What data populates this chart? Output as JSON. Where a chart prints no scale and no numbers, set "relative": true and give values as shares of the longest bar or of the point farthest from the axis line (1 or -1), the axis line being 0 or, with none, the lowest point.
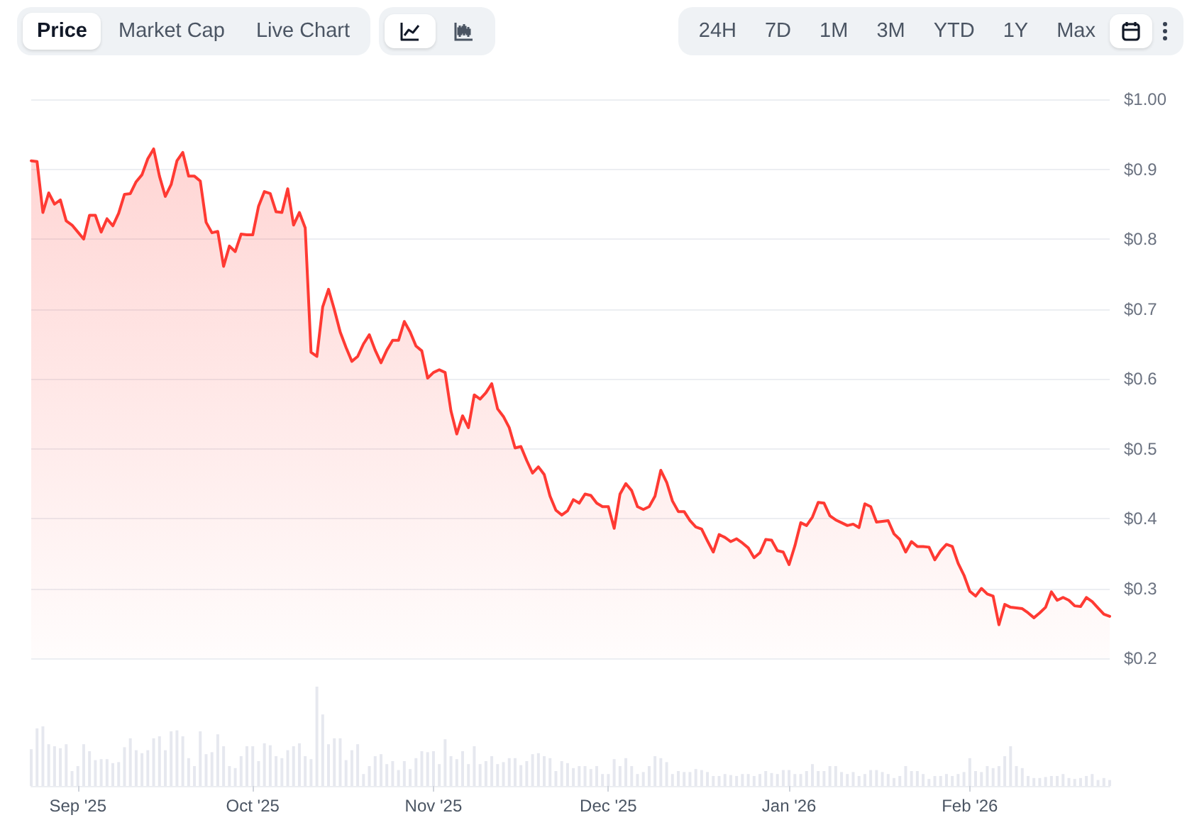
{
  "chart_data": [
    {
      "type": "area",
      "tick_labels": "y",
      "grid": "y",
      "marker": "none",
      "line_style": "solid",
      "annotations": [
        "Price",
        "Market Cap",
        "Live Chart",
        "24H",
        "7D",
        "1M",
        "3M",
        "YTD",
        "1Y",
        "Max"
      ],
      "xlim": [
        "2025-08-24",
        "2026-02-25"
      ],
      "ylim": [
        0.2,
        1.0
      ],
      "yticks": [
        {
          "value": 0.2,
          "label": "$0.2"
        },
        {
          "value": 0.3,
          "label": "$0.3"
        },
        {
          "value": 0.4,
          "label": "$0.4"
        },
        {
          "value": 0.5,
          "label": "$0.5"
        },
        {
          "value": 0.6,
          "label": "$0.6"
        },
        {
          "value": 0.7,
          "label": "$0.7"
        },
        {
          "value": 0.8,
          "label": "$0.8"
        },
        {
          "value": 0.9,
          "label": "$0.9"
        },
        {
          "value": 1.0,
          "label": "$1.00"
        }
      ],
      "x": [
        "2025-08-24",
        "2025-08-25",
        "2025-08-26",
        "2025-08-27",
        "2025-08-28",
        "2025-08-29",
        "2025-08-30",
        "2025-08-31",
        "2025-09-01",
        "2025-09-02",
        "2025-09-03",
        "2025-09-04",
        "2025-09-05",
        "2025-09-06",
        "2025-09-07",
        "2025-09-08",
        "2025-09-09",
        "2025-09-10",
        "2025-09-11",
        "2025-09-12",
        "2025-09-13",
        "2025-09-14",
        "2025-09-15",
        "2025-09-16",
        "2025-09-17",
        "2025-09-18",
        "2025-09-19",
        "2025-09-20",
        "2025-09-21",
        "2025-09-22",
        "2025-09-23",
        "2025-09-24",
        "2025-09-25",
        "2025-09-26",
        "2025-09-27",
        "2025-09-28",
        "2025-09-29",
        "2025-09-30",
        "2025-10-01",
        "2025-10-02",
        "2025-10-03",
        "2025-10-04",
        "2025-10-05",
        "2025-10-06",
        "2025-10-07",
        "2025-10-08",
        "2025-10-09",
        "2025-10-10",
        "2025-10-11",
        "2025-10-12",
        "2025-10-13",
        "2025-10-14",
        "2025-10-15",
        "2025-10-16",
        "2025-10-17",
        "2025-10-18",
        "2025-10-19",
        "2025-10-20",
        "2025-10-21",
        "2025-10-22",
        "2025-10-23",
        "2025-10-24",
        "2025-10-25",
        "2025-10-26",
        "2025-10-27",
        "2025-10-28",
        "2025-10-29",
        "2025-10-30",
        "2025-10-31",
        "2025-11-01",
        "2025-11-02",
        "2025-11-03",
        "2025-11-04",
        "2025-11-05",
        "2025-11-06",
        "2025-11-07",
        "2025-11-08",
        "2025-11-09",
        "2025-11-10",
        "2025-11-11",
        "2025-11-12",
        "2025-11-13",
        "2025-11-14",
        "2025-11-15",
        "2025-11-16",
        "2025-11-17",
        "2025-11-18",
        "2025-11-19",
        "2025-11-20",
        "2025-11-21",
        "2025-11-22",
        "2025-11-23",
        "2025-11-24",
        "2025-11-25",
        "2025-11-26",
        "2025-11-27",
        "2025-11-28",
        "2025-11-29",
        "2025-11-30",
        "2025-12-01",
        "2025-12-02",
        "2025-12-03",
        "2025-12-04",
        "2025-12-05",
        "2025-12-06",
        "2025-12-07",
        "2025-12-08",
        "2025-12-09",
        "2025-12-10",
        "2025-12-11",
        "2025-12-12",
        "2025-12-13",
        "2025-12-14",
        "2025-12-15",
        "2025-12-16",
        "2025-12-17",
        "2025-12-18",
        "2025-12-19",
        "2025-12-20",
        "2025-12-21",
        "2025-12-22",
        "2025-12-23",
        "2025-12-24",
        "2025-12-25",
        "2025-12-26",
        "2025-12-27",
        "2025-12-28",
        "2025-12-29",
        "2025-12-30",
        "2025-12-31",
        "2026-01-01",
        "2026-01-02",
        "2026-01-03",
        "2026-01-04",
        "2026-01-05",
        "2026-01-06",
        "2026-01-07",
        "2026-01-08",
        "2026-01-09",
        "2026-01-10",
        "2026-01-11",
        "2026-01-12",
        "2026-01-13",
        "2026-01-14",
        "2026-01-15",
        "2026-01-16",
        "2026-01-17",
        "2026-01-18",
        "2026-01-19",
        "2026-01-20",
        "2026-01-21",
        "2026-01-22",
        "2026-01-23",
        "2026-01-24",
        "2026-01-25",
        "2026-01-26",
        "2026-01-27",
        "2026-01-28",
        "2026-01-29",
        "2026-01-30",
        "2026-01-31",
        "2026-02-01",
        "2026-02-02",
        "2026-02-03",
        "2026-02-04",
        "2026-02-05",
        "2026-02-06",
        "2026-02-07",
        "2026-02-08",
        "2026-02-09",
        "2026-02-10",
        "2026-02-11",
        "2026-02-12",
        "2026-02-13",
        "2026-02-14",
        "2026-02-15",
        "2026-02-16",
        "2026-02-17",
        "2026-02-18",
        "2026-02-19",
        "2026-02-20",
        "2026-02-21",
        "2026-02-22",
        "2026-02-23",
        "2026-02-24",
        "2026-02-25"
      ],
      "series": [
        {
          "color": "#ff3a33",
          "values": [
            0.912,
            0.911,
            0.838,
            0.866,
            0.85,
            0.856,
            0.826,
            0.82,
            0.81,
            0.8,
            0.834,
            0.834,
            0.81,
            0.829,
            0.819,
            0.837,
            0.864,
            0.865,
            0.882,
            0.892,
            0.915,
            0.929,
            0.89,
            0.861,
            0.878,
            0.912,
            0.924,
            0.89,
            0.89,
            0.883,
            0.824,
            0.809,
            0.811,
            0.761,
            0.79,
            0.782,
            0.807,
            0.806,
            0.806,
            0.847,
            0.868,
            0.865,
            0.839,
            0.838,
            0.872,
            0.82,
            0.838,
            0.816,
            0.638,
            0.632,
            0.703,
            0.728,
            0.699,
            0.667,
            0.645,
            0.625,
            0.632,
            0.65,
            0.663,
            0.641,
            0.623,
            0.641,
            0.655,
            0.655,
            0.682,
            0.667,
            0.647,
            0.64,
            0.601,
            0.609,
            0.613,
            0.609,
            0.554,
            0.521,
            0.547,
            0.53,
            0.577,
            0.571,
            0.58,
            0.593,
            0.557,
            0.546,
            0.53,
            0.501,
            0.503,
            0.483,
            0.465,
            0.474,
            0.463,
            0.432,
            0.412,
            0.405,
            0.411,
            0.427,
            0.422,
            0.435,
            0.433,
            0.422,
            0.417,
            0.417,
            0.386,
            0.435,
            0.45,
            0.44,
            0.417,
            0.413,
            0.417,
            0.432,
            0.469,
            0.452,
            0.425,
            0.41,
            0.41,
            0.397,
            0.388,
            0.385,
            0.368,
            0.352,
            0.377,
            0.373,
            0.367,
            0.371,
            0.365,
            0.358,
            0.344,
            0.351,
            0.37,
            0.369,
            0.354,
            0.352,
            0.334,
            0.361,
            0.394,
            0.39,
            0.402,
            0.423,
            0.422,
            0.404,
            0.398,
            0.394,
            0.39,
            0.392,
            0.387,
            0.421,
            0.417,
            0.395,
            0.396,
            0.397,
            0.378,
            0.37,
            0.352,
            0.367,
            0.36,
            0.36,
            0.359,
            0.341,
            0.354,
            0.363,
            0.36,
            0.336,
            0.319,
            0.296,
            0.289,
            0.3,
            0.292,
            0.289,
            0.248,
            0.277,
            0.273,
            0.272,
            0.271,
            0.265,
            0.258,
            0.265,
            0.273,
            0.295,
            0.283,
            0.287,
            0.283,
            0.275,
            0.274,
            0.287,
            0.281,
            0.272,
            0.263,
            0.26
          ]
        }
      ]
    },
    {
      "type": "bar",
      "relative": true,
      "tick_labels": "x",
      "grid": false,
      "xlim": [
        "2025-08-24",
        "2026-02-25"
      ],
      "xticks": [
        {
          "value": "2025-09-01",
          "label": "Sep '25"
        },
        {
          "value": "2025-10-01",
          "label": "Oct '25"
        },
        {
          "value": "2025-11-01",
          "label": "Nov '25"
        },
        {
          "value": "2025-12-01",
          "label": "Dec '25"
        },
        {
          "value": "2026-01-01",
          "label": "Jan '26"
        },
        {
          "value": "2026-02-01",
          "label": "Feb '26"
        }
      ],
      "x": [
        "2025-08-24",
        "2025-08-25",
        "2025-08-26",
        "2025-08-27",
        "2025-08-28",
        "2025-08-29",
        "2025-08-30",
        "2025-08-31",
        "2025-09-01",
        "2025-09-02",
        "2025-09-03",
        "2025-09-04",
        "2025-09-05",
        "2025-09-06",
        "2025-09-07",
        "2025-09-08",
        "2025-09-09",
        "2025-09-10",
        "2025-09-11",
        "2025-09-12",
        "2025-09-13",
        "2025-09-14",
        "2025-09-15",
        "2025-09-16",
        "2025-09-17",
        "2025-09-18",
        "2025-09-19",
        "2025-09-20",
        "2025-09-21",
        "2025-09-22",
        "2025-09-23",
        "2025-09-24",
        "2025-09-25",
        "2025-09-26",
        "2025-09-27",
        "2025-09-28",
        "2025-09-29",
        "2025-09-30",
        "2025-10-01",
        "2025-10-02",
        "2025-10-03",
        "2025-10-04",
        "2025-10-05",
        "2025-10-06",
        "2025-10-07",
        "2025-10-08",
        "2025-10-09",
        "2025-10-10",
        "2025-10-11",
        "2025-10-12",
        "2025-10-13",
        "2025-10-14",
        "2025-10-15",
        "2025-10-16",
        "2025-10-17",
        "2025-10-18",
        "2025-10-19",
        "2025-10-20",
        "2025-10-21",
        "2025-10-22",
        "2025-10-23",
        "2025-10-24",
        "2025-10-25",
        "2025-10-26",
        "2025-10-27",
        "2025-10-28",
        "2025-10-29",
        "2025-10-30",
        "2025-10-31",
        "2025-11-01",
        "2025-11-02",
        "2025-11-03",
        "2025-11-04",
        "2025-11-05",
        "2025-11-06",
        "2025-11-07",
        "2025-11-08",
        "2025-11-09",
        "2025-11-10",
        "2025-11-11",
        "2025-11-12",
        "2025-11-13",
        "2025-11-14",
        "2025-11-15",
        "2025-11-16",
        "2025-11-17",
        "2025-11-18",
        "2025-11-19",
        "2025-11-20",
        "2025-11-21",
        "2025-11-22",
        "2025-11-23",
        "2025-11-24",
        "2025-11-25",
        "2025-11-26",
        "2025-11-27",
        "2025-11-28",
        "2025-11-29",
        "2025-11-30",
        "2025-12-01",
        "2025-12-02",
        "2025-12-03",
        "2025-12-04",
        "2025-12-05",
        "2025-12-06",
        "2025-12-07",
        "2025-12-08",
        "2025-12-09",
        "2025-12-10",
        "2025-12-11",
        "2025-12-12",
        "2025-12-13",
        "2025-12-14",
        "2025-12-15",
        "2025-12-16",
        "2025-12-17",
        "2025-12-18",
        "2025-12-19",
        "2025-12-20",
        "2025-12-21",
        "2025-12-22",
        "2025-12-23",
        "2025-12-24",
        "2025-12-25",
        "2025-12-26",
        "2025-12-27",
        "2025-12-28",
        "2025-12-29",
        "2025-12-30",
        "2025-12-31",
        "2026-01-01",
        "2026-01-02",
        "2026-01-03",
        "2026-01-04",
        "2026-01-05",
        "2026-01-06",
        "2026-01-07",
        "2026-01-08",
        "2026-01-09",
        "2026-01-10",
        "2026-01-11",
        "2026-01-12",
        "2026-01-13",
        "2026-01-14",
        "2026-01-15",
        "2026-01-16",
        "2026-01-17",
        "2026-01-18",
        "2026-01-19",
        "2026-01-20",
        "2026-01-21",
        "2026-01-22",
        "2026-01-23",
        "2026-01-24",
        "2026-01-25",
        "2026-01-26",
        "2026-01-27",
        "2026-01-28",
        "2026-01-29",
        "2026-01-30",
        "2026-01-31",
        "2026-02-01",
        "2026-02-02",
        "2026-02-03",
        "2026-02-04",
        "2026-02-05",
        "2026-02-06",
        "2026-02-07",
        "2026-02-08",
        "2026-02-09",
        "2026-02-10",
        "2026-02-11",
        "2026-02-12",
        "2026-02-13",
        "2026-02-14",
        "2026-02-15",
        "2026-02-16",
        "2026-02-17",
        "2026-02-18",
        "2026-02-19",
        "2026-02-20",
        "2026-02-21",
        "2026-02-22",
        "2026-02-23",
        "2026-02-24",
        "2026-02-25"
      ],
      "series": [
        {
          "color": "#e6e8ef",
          "values": [
            0.37,
            0.58,
            0.6,
            0.42,
            0.4,
            0.38,
            0.42,
            0.15,
            0.2,
            0.42,
            0.35,
            0.26,
            0.27,
            0.27,
            0.23,
            0.24,
            0.39,
            0.48,
            0.36,
            0.33,
            0.36,
            0.48,
            0.5,
            0.36,
            0.55,
            0.56,
            0.5,
            0.28,
            0.2,
            0.55,
            0.32,
            0.34,
            0.52,
            0.4,
            0.2,
            0.18,
            0.3,
            0.4,
            0.4,
            0.25,
            0.43,
            0.41,
            0.3,
            0.28,
            0.36,
            0.4,
            0.43,
            0.3,
            0.27,
            1.0,
            0.72,
            0.42,
            0.48,
            0.48,
            0.26,
            0.36,
            0.42,
            0.12,
            0.2,
            0.3,
            0.32,
            0.22,
            0.25,
            0.16,
            0.25,
            0.17,
            0.28,
            0.35,
            0.34,
            0.35,
            0.22,
            0.47,
            0.3,
            0.27,
            0.35,
            0.22,
            0.4,
            0.22,
            0.25,
            0.3,
            0.22,
            0.24,
            0.28,
            0.28,
            0.21,
            0.25,
            0.32,
            0.33,
            0.3,
            0.28,
            0.15,
            0.25,
            0.23,
            0.18,
            0.2,
            0.2,
            0.17,
            0.2,
            0.12,
            0.12,
            0.27,
            0.2,
            0.28,
            0.2,
            0.12,
            0.14,
            0.2,
            0.3,
            0.28,
            0.24,
            0.12,
            0.15,
            0.14,
            0.14,
            0.17,
            0.16,
            0.14,
            0.1,
            0.1,
            0.12,
            0.11,
            0.1,
            0.12,
            0.12,
            0.1,
            0.12,
            0.15,
            0.13,
            0.12,
            0.16,
            0.16,
            0.12,
            0.12,
            0.15,
            0.22,
            0.15,
            0.15,
            0.2,
            0.2,
            0.14,
            0.12,
            0.14,
            0.1,
            0.12,
            0.16,
            0.16,
            0.14,
            0.12,
            0.08,
            0.1,
            0.2,
            0.15,
            0.15,
            0.12,
            0.07,
            0.1,
            0.1,
            0.12,
            0.1,
            0.12,
            0.14,
            0.28,
            0.15,
            0.14,
            0.2,
            0.18,
            0.2,
            0.3,
            0.4,
            0.2,
            0.18,
            0.1,
            0.08,
            0.08,
            0.09,
            0.1,
            0.1,
            0.12,
            0.08,
            0.07,
            0.08,
            0.1,
            0.12,
            0.06,
            0.08,
            0.06
          ]
        }
      ]
    }
  ]
}
